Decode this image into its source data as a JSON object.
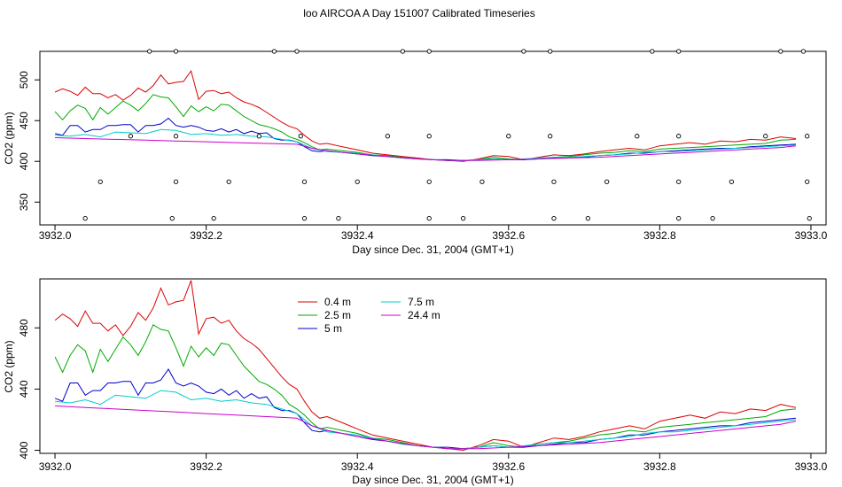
{
  "page_title": "loo AIRCOA A  Day 151007  Calibrated Timeseries",
  "chart_data": [
    {
      "type": "line",
      "panel": "top",
      "xlabel": "Day since Dec. 31, 2004 (GMT+1)",
      "ylabel": "CO2 (ppm)",
      "xlim": [
        3931.98,
        3933.02
      ],
      "ylim": [
        322,
        535
      ],
      "x_ticks": [
        3932.0,
        3932.2,
        3932.4,
        3932.6,
        3932.8,
        3933.0
      ],
      "x_tick_labels": [
        "3932.0",
        "3932.2",
        "3932.4",
        "3932.6",
        "3932.8",
        "3933.0"
      ],
      "y_ticks": [
        350,
        400,
        450,
        500
      ],
      "y_tick_labels": [
        "350",
        "400",
        "450",
        "500"
      ],
      "grid": false,
      "legend": null,
      "marker_series": {
        "name": "",
        "points": [
          [
            3932.125,
            535
          ],
          [
            3932.16,
            535
          ],
          [
            3932.29,
            535
          ],
          [
            3932.32,
            535
          ],
          [
            3932.46,
            535
          ],
          [
            3932.495,
            535
          ],
          [
            3932.62,
            535
          ],
          [
            3932.655,
            535
          ],
          [
            3932.79,
            535
          ],
          [
            3932.825,
            535
          ],
          [
            3932.96,
            535
          ],
          [
            3932.99,
            535
          ],
          [
            3932.1,
            431
          ],
          [
            3932.16,
            431
          ],
          [
            3932.27,
            431
          ],
          [
            3932.325,
            431
          ],
          [
            3932.44,
            431
          ],
          [
            3932.495,
            431
          ],
          [
            3932.6,
            431
          ],
          [
            3932.655,
            431
          ],
          [
            3932.77,
            431
          ],
          [
            3932.825,
            431
          ],
          [
            3932.94,
            431
          ],
          [
            3932.995,
            431
          ],
          [
            3932.06,
            375
          ],
          [
            3932.16,
            375
          ],
          [
            3932.23,
            375
          ],
          [
            3932.33,
            375
          ],
          [
            3932.4,
            375
          ],
          [
            3932.495,
            375
          ],
          [
            3932.565,
            375
          ],
          [
            3932.66,
            375
          ],
          [
            3932.73,
            375
          ],
          [
            3932.825,
            375
          ],
          [
            3932.895,
            375
          ],
          [
            3932.995,
            375
          ],
          [
            3932.04,
            330
          ],
          [
            3932.155,
            330
          ],
          [
            3932.21,
            330
          ],
          [
            3932.33,
            330
          ],
          [
            3932.375,
            330
          ],
          [
            3932.495,
            330
          ],
          [
            3932.54,
            330
          ],
          [
            3932.66,
            330
          ],
          [
            3932.705,
            330
          ],
          [
            3932.825,
            330
          ],
          [
            3932.87,
            330
          ],
          [
            3932.998,
            330
          ]
        ]
      }
    },
    {
      "type": "line",
      "panel": "bottom",
      "xlabel": "Day since Dec. 31, 2004 (GMT+1)",
      "ylabel": "CO2 (ppm)",
      "xlim": [
        3931.98,
        3933.02
      ],
      "ylim": [
        398,
        512
      ],
      "x_ticks": [
        3932.0,
        3932.2,
        3932.4,
        3932.6,
        3932.8,
        3933.0
      ],
      "x_tick_labels": [
        "3932.0",
        "3932.2",
        "3932.4",
        "3932.6",
        "3932.8",
        "3933.0"
      ],
      "y_ticks": [
        400,
        440,
        480
      ],
      "y_tick_labels": [
        "400",
        "440",
        "480"
      ],
      "grid": false,
      "legend": {
        "placement": "top-center",
        "columns": 2
      }
    }
  ],
  "series": [
    {
      "name": "0.4 m",
      "color": "#dd0000",
      "x": [
        3932.0,
        3932.01,
        3932.02,
        3932.03,
        3932.04,
        3932.05,
        3932.06,
        3932.07,
        3932.08,
        3932.09,
        3932.1,
        3932.11,
        3932.12,
        3932.13,
        3932.14,
        3932.15,
        3932.16,
        3932.17,
        3932.18,
        3932.19,
        3932.2,
        3932.21,
        3932.22,
        3932.23,
        3932.24,
        3932.25,
        3932.26,
        3932.27,
        3932.28,
        3932.29,
        3932.3,
        3932.31,
        3932.32,
        3932.33,
        3932.34,
        3932.35,
        3932.36,
        3932.38,
        3932.4,
        3932.42,
        3932.44,
        3932.46,
        3932.48,
        3932.5,
        3932.52,
        3932.54,
        3932.56,
        3932.58,
        3932.6,
        3932.62,
        3932.64,
        3932.66,
        3932.68,
        3932.7,
        3932.72,
        3932.74,
        3932.76,
        3932.78,
        3932.8,
        3932.82,
        3932.84,
        3932.86,
        3932.88,
        3932.9,
        3932.92,
        3932.94,
        3932.96,
        3932.98
      ],
      "y": [
        485,
        489,
        486,
        481,
        491,
        483,
        483,
        478,
        482,
        475,
        481,
        490,
        485,
        493,
        506,
        495,
        497,
        498,
        511,
        476,
        486,
        487,
        483,
        485,
        478,
        473,
        470,
        466,
        460,
        454,
        448,
        443,
        440,
        432,
        425,
        421,
        422,
        418,
        414,
        410,
        408,
        406,
        404,
        402,
        401,
        400,
        403,
        407,
        406,
        402,
        405,
        408,
        407,
        409,
        412,
        414,
        416,
        414,
        419,
        421,
        423,
        421,
        425,
        424,
        427,
        426,
        430,
        428
      ]
    },
    {
      "name": "2.5 m",
      "color": "#00aa00",
      "x": [
        3932.0,
        3932.01,
        3932.02,
        3932.03,
        3932.04,
        3932.05,
        3932.06,
        3932.07,
        3932.08,
        3932.09,
        3932.1,
        3932.11,
        3932.12,
        3932.13,
        3932.14,
        3932.15,
        3932.16,
        3932.17,
        3932.18,
        3932.19,
        3932.2,
        3932.21,
        3932.22,
        3932.23,
        3932.24,
        3932.25,
        3932.26,
        3932.27,
        3932.28,
        3932.29,
        3932.3,
        3932.31,
        3932.32,
        3932.33,
        3932.34,
        3932.35,
        3932.36,
        3932.38,
        3932.4,
        3932.42,
        3932.44,
        3932.46,
        3932.48,
        3932.5,
        3932.52,
        3932.54,
        3932.56,
        3932.58,
        3932.6,
        3932.62,
        3932.64,
        3932.66,
        3932.68,
        3932.7,
        3932.72,
        3932.74,
        3932.76,
        3932.78,
        3932.8,
        3932.82,
        3932.84,
        3932.86,
        3932.88,
        3932.9,
        3932.92,
        3932.94,
        3932.96,
        3932.98
      ],
      "y": [
        461,
        451,
        462,
        469,
        465,
        451,
        466,
        458,
        466,
        474,
        469,
        462,
        471,
        482,
        479,
        478,
        467,
        455,
        468,
        461,
        467,
        462,
        470,
        469,
        462,
        455,
        450,
        445,
        443,
        440,
        436,
        430,
        427,
        423,
        418,
        414,
        415,
        413,
        411,
        408,
        407,
        405,
        403,
        402,
        401,
        401,
        402,
        405,
        403,
        402,
        404,
        405,
        406,
        408,
        410,
        411,
        413,
        412,
        415,
        416,
        417,
        418,
        419,
        420,
        421,
        422,
        426,
        427
      ]
    },
    {
      "name": "5 m",
      "color": "#0000cc",
      "x": [
        3932.0,
        3932.01,
        3932.02,
        3932.03,
        3932.04,
        3932.05,
        3932.06,
        3932.07,
        3932.08,
        3932.09,
        3932.1,
        3932.11,
        3932.12,
        3932.13,
        3932.14,
        3932.15,
        3932.16,
        3932.17,
        3932.18,
        3932.19,
        3932.2,
        3932.21,
        3932.22,
        3932.23,
        3932.24,
        3932.25,
        3932.26,
        3932.27,
        3932.28,
        3932.29,
        3932.3,
        3932.31,
        3932.32,
        3932.33,
        3932.34,
        3932.35,
        3932.36,
        3932.38,
        3932.4,
        3932.42,
        3932.44,
        3932.46,
        3932.48,
        3932.5,
        3932.52,
        3932.54,
        3932.56,
        3932.58,
        3932.6,
        3932.62,
        3932.64,
        3932.66,
        3932.68,
        3932.7,
        3932.72,
        3932.74,
        3932.76,
        3932.78,
        3932.8,
        3932.82,
        3932.84,
        3932.86,
        3932.88,
        3932.9,
        3932.92,
        3932.94,
        3932.96,
        3932.98
      ],
      "y": [
        434,
        432,
        444,
        444,
        436,
        439,
        439,
        444,
        444,
        445,
        445,
        436,
        444,
        444,
        446,
        453,
        444,
        442,
        444,
        442,
        438,
        437,
        440,
        436,
        439,
        434,
        437,
        434,
        435,
        428,
        426,
        426,
        424,
        418,
        413,
        412,
        413,
        411,
        409,
        407,
        406,
        404,
        403,
        402,
        402,
        401,
        402,
        403,
        402,
        402,
        403,
        404,
        405,
        405,
        407,
        408,
        410,
        410,
        412,
        413,
        414,
        415,
        416,
        416,
        418,
        419,
        420,
        421
      ]
    },
    {
      "name": "7.5 m",
      "color": "#00cccc",
      "x": [
        3932.0,
        3932.02,
        3932.04,
        3932.06,
        3932.08,
        3932.1,
        3932.12,
        3932.14,
        3932.16,
        3932.18,
        3932.2,
        3932.22,
        3932.24,
        3932.26,
        3932.28,
        3932.3,
        3932.32,
        3932.34,
        3932.36,
        3932.38,
        3932.4,
        3932.42,
        3932.44,
        3932.46,
        3932.48,
        3932.5,
        3932.52,
        3932.54,
        3932.56,
        3932.58,
        3932.6,
        3932.62,
        3932.64,
        3932.66,
        3932.68,
        3932.7,
        3932.72,
        3932.74,
        3932.76,
        3932.78,
        3932.8,
        3932.82,
        3932.84,
        3932.86,
        3932.88,
        3932.9,
        3932.92,
        3932.94,
        3932.96,
        3932.98
      ],
      "y": [
        432,
        431,
        433,
        430,
        436,
        435,
        434,
        439,
        438,
        433,
        434,
        432,
        433,
        431,
        430,
        427,
        424,
        416,
        412,
        411,
        410,
        408,
        406,
        404,
        403,
        402,
        401,
        401,
        402,
        403,
        402,
        403,
        404,
        405,
        405,
        406,
        407,
        408,
        409,
        411,
        412,
        412,
        413,
        414,
        415,
        416,
        417,
        418,
        419,
        420
      ]
    },
    {
      "name": "24.4 m",
      "color": "#cc00cc",
      "x": [
        3932.0,
        3932.04,
        3932.08,
        3932.12,
        3932.16,
        3932.2,
        3932.24,
        3932.28,
        3932.32,
        3932.34,
        3932.36,
        3932.4,
        3932.44,
        3932.48,
        3932.52,
        3932.56,
        3932.6,
        3932.64,
        3932.68,
        3932.72,
        3932.76,
        3932.8,
        3932.84,
        3932.88,
        3932.92,
        3932.96,
        3932.98
      ],
      "y": [
        429,
        428,
        427,
        426,
        425,
        424,
        423,
        422,
        421,
        416,
        413,
        409,
        406,
        403,
        401,
        401,
        402,
        403,
        404,
        405,
        407,
        409,
        411,
        413,
        415,
        417,
        419
      ]
    }
  ]
}
